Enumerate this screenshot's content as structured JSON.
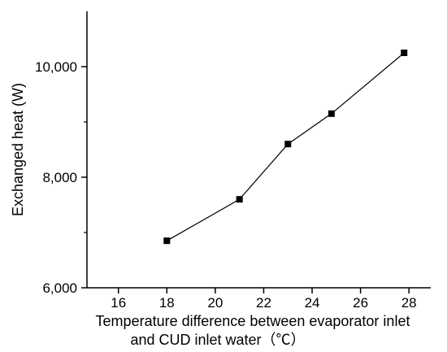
{
  "chart_data": {
    "type": "line",
    "xlabel_line1": "Temperature difference between evaporator inlet",
    "xlabel_line2": "and CUD inlet water（℃）",
    "ylabel": "Exchanged heat (W)",
    "xlim": [
      14.7,
      28.9
    ],
    "ylim": [
      6000,
      11000
    ],
    "x_ticks": [
      16,
      18,
      20,
      22,
      24,
      26,
      28
    ],
    "y_ticks": [
      6000,
      8000,
      10000
    ],
    "y_tick_labels": [
      "6,000",
      "8,000",
      "10,000"
    ],
    "grid": false,
    "marker": "square",
    "series": [
      {
        "x": [
          18.0,
          21.0,
          23.0,
          24.8,
          27.8
        ],
        "y": [
          6850,
          7600,
          8600,
          9150,
          10250
        ]
      }
    ]
  },
  "colors": {
    "line": "#000000",
    "marker": "#000000",
    "axis": "#000000"
  }
}
